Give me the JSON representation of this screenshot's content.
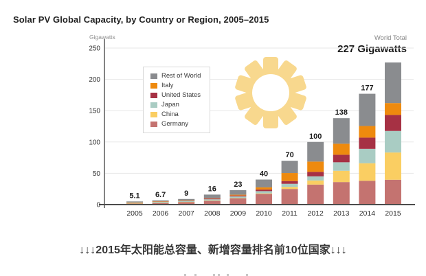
{
  "header": {
    "title": "Solar PV Global Capacity, by Country or Region, 2005–2015"
  },
  "chart_data": {
    "type": "bar",
    "stacked": true,
    "title": "Solar PV Global Capacity, by Country or Region, 2005–2015",
    "y_unit": "Gigawatts",
    "xlabel": "",
    "ylabel": "Gigawatts",
    "ylim": [
      0,
      250
    ],
    "yticks": [
      0,
      50,
      100,
      150,
      200,
      250
    ],
    "grid": true,
    "categories": [
      "2005",
      "2006",
      "2007",
      "2008",
      "2009",
      "2010",
      "2011",
      "2012",
      "2013",
      "2014",
      "2015"
    ],
    "series": [
      {
        "name": "Germany",
        "color": "#C47370",
        "values": [
          2.0,
          2.9,
          4.2,
          6.1,
          10.0,
          17.0,
          25.0,
          32.0,
          36.0,
          38.0,
          39.7
        ]
      },
      {
        "name": "China",
        "color": "#FACE62",
        "values": [
          0.1,
          0.1,
          0.1,
          0.3,
          0.4,
          0.9,
          3.3,
          6.5,
          18.0,
          28.0,
          43.5
        ]
      },
      {
        "name": "Japan",
        "color": "#A9CCC3",
        "values": [
          1.4,
          1.7,
          1.9,
          2.1,
          2.6,
          3.6,
          4.9,
          6.6,
          13.6,
          23.0,
          34.4
        ]
      },
      {
        "name": "United States",
        "color": "#A63144",
        "values": [
          0.5,
          0.6,
          0.8,
          1.2,
          1.6,
          2.5,
          4.4,
          7.2,
          12.0,
          18.0,
          25.6
        ]
      },
      {
        "name": "Italy",
        "color": "#EE8A0E",
        "values": [
          0.1,
          0.1,
          0.1,
          0.5,
          1.2,
          3.5,
          12.8,
          16.4,
          17.6,
          18.5,
          18.9
        ]
      },
      {
        "name": "Rest of World",
        "color": "#8A8C8F",
        "values": [
          1.0,
          1.3,
          1.9,
          5.8,
          7.2,
          12.5,
          19.6,
          31.3,
          40.8,
          51.5,
          64.9
        ]
      }
    ],
    "totals": [
      5.1,
      6.7,
      9,
      16,
      23,
      40,
      70,
      100,
      138,
      177,
      227
    ],
    "value_labels": [
      "5.1",
      "6.7",
      "9",
      "16",
      "23",
      "40",
      "70",
      "100",
      "138",
      "177",
      ""
    ],
    "world_total_label": "World Total",
    "world_total_value": "227 Gigawatts",
    "legend_order_top_to_bottom": [
      "Rest of World",
      "Italy",
      "United States",
      "Japan",
      "China",
      "Germany"
    ],
    "legend_position": "upper-left-inside",
    "decorations": {
      "sun_color": "#F8D88E"
    }
  },
  "caption": {
    "text": "↓↓↓2015年太阳能总容量、新增容量排名前10位国家↓↓↓"
  }
}
